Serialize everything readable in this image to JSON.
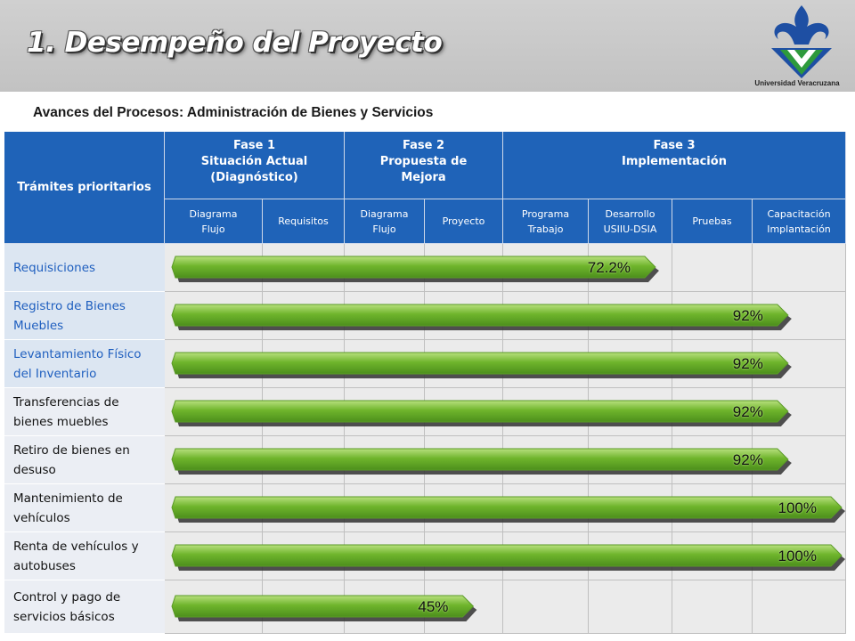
{
  "slide": {
    "title": "1. Desempeño del Proyecto",
    "subtitle": "Avances del Procesos:  Administración de Bienes y Servicios",
    "logo_caption": "Universidad Veracruzana"
  },
  "colors": {
    "header_blue": "#1f63b8",
    "row_alt_label": "#dce6f2",
    "row_label_plain": "#ebeef4",
    "body_cell": "#ebebeb",
    "bar_green": "#6fb52c",
    "link_blue": "#1f5fbf"
  },
  "table": {
    "first_col_header": "Trámites prioritarios",
    "phases": [
      {
        "line1": "Fase 1",
        "line2": "Situación Actual",
        "line3": "(Diagnóstico)"
      },
      {
        "line1": "Fase 2",
        "line2": "Propuesta de",
        "line3": "Mejora"
      },
      {
        "line1": "Fase 3",
        "line2": "Implementación",
        "line3": ""
      }
    ],
    "subheaders": [
      {
        "line1": "Diagrama",
        "line2": "Flujo"
      },
      {
        "line1": "Requisitos",
        "line2": ""
      },
      {
        "line1": "Diagrama",
        "line2": "Flujo"
      },
      {
        "line1": "Proyecto",
        "line2": ""
      },
      {
        "line1": "Programa",
        "line2": "Trabajo"
      },
      {
        "line1": "Desarrollo",
        "line2": "USIIU-DSIA"
      },
      {
        "line1": "Pruebas",
        "line2": ""
      },
      {
        "line1": "Capacitación",
        "line2": "Implantación"
      }
    ],
    "rows": [
      {
        "label": "Requisiciones",
        "progress": 72.2,
        "progress_label": "72.2%",
        "linked": true
      },
      {
        "label": "Registro de Bienes Muebles",
        "progress": 92,
        "progress_label": "92%",
        "linked": true
      },
      {
        "label": "Levantamiento Físico del Inventario",
        "progress": 92,
        "progress_label": "92%",
        "linked": true
      },
      {
        "label": "Transferencias de bienes muebles",
        "progress": 92,
        "progress_label": "92%",
        "linked": false
      },
      {
        "label": "Retiro de bienes en desuso",
        "progress": 92,
        "progress_label": "92%",
        "linked": false
      },
      {
        "label": "Mantenimiento de vehículos",
        "progress": 100,
        "progress_label": "100%",
        "linked": false
      },
      {
        "label": "Renta de vehículos y autobuses",
        "progress": 100,
        "progress_label": "100%",
        "linked": false
      },
      {
        "label": "Control y pago de servicios básicos",
        "progress": 45,
        "progress_label": "45%",
        "linked": false
      }
    ]
  }
}
